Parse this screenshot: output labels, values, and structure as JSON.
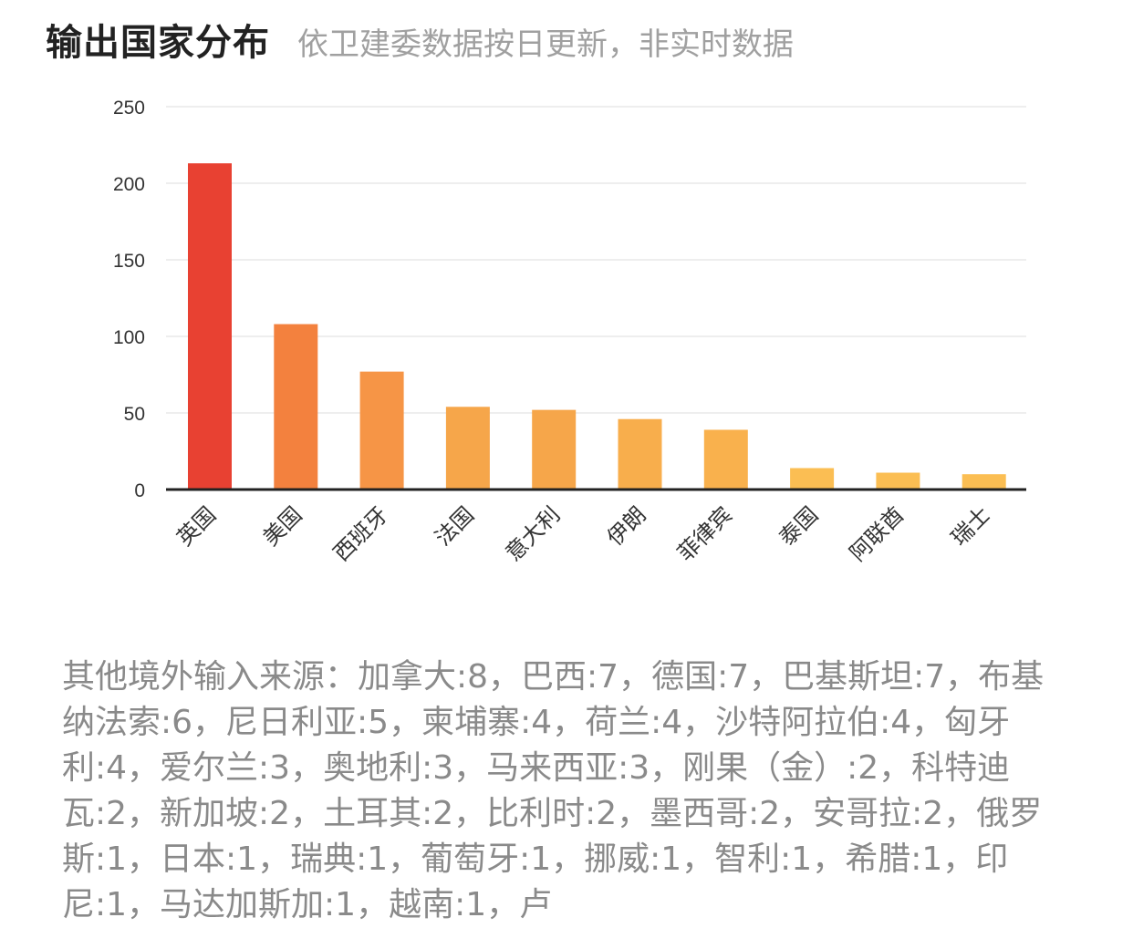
{
  "header": {
    "title": "输出国家分布",
    "subtitle": "依卫建委数据按日更新，非实时数据"
  },
  "chart_data": {
    "type": "bar",
    "categories": [
      "英国",
      "美国",
      "西班牙",
      "法国",
      "意大利",
      "伊朗",
      "菲律宾",
      "泰国",
      "阿联酋",
      "瑞士"
    ],
    "values": [
      213,
      108,
      77,
      54,
      52,
      46,
      39,
      14,
      11,
      10
    ],
    "ylim": [
      0,
      250
    ],
    "yticks": [
      0,
      50,
      100,
      150,
      200,
      250
    ],
    "grid": true,
    "colors": [
      "#e84132",
      "#f3813e",
      "#f69546",
      "#f6a64a",
      "#f6a64a",
      "#f8ae4c",
      "#f9b14d",
      "#fbbe53",
      "#fbbe53",
      "#fbbe53"
    ],
    "axis_color": "#222222",
    "grid_color": "#eeeeee",
    "tick_label_color": "#333333"
  },
  "others": {
    "text": "其他境外输入来源：加拿大:8，巴西:7，德国:7，巴基斯坦:7，布基纳法索:6，尼日利亚:5，柬埔寨:4，荷兰:4，沙特阿拉伯:4，匈牙利:4，爱尔兰:3，奥地利:3，马来西亚:3，刚果（金）:2，科特迪瓦:2，新加坡:2，土耳其:2，比利时:2，墨西哥:2，安哥拉:2，俄罗斯:1，日本:1，瑞典:1，葡萄牙:1，挪威:1，智利:1，希腊:1，印尼:1，马达加斯加:1，越南:1，卢"
  }
}
